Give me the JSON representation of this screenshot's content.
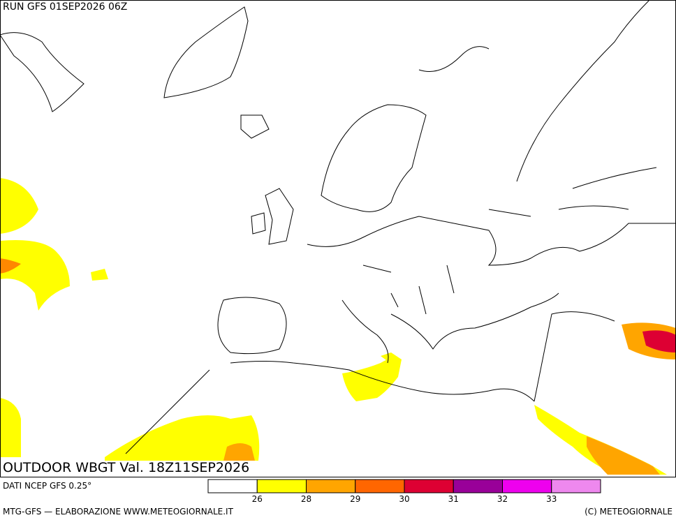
{
  "header": {
    "run": "RUN GFS 01SEP2026 06Z"
  },
  "title": "OUTDOOR WBGT Val. 18Z11SEP2026",
  "source": "DATI NCEP GFS 0.25°",
  "legend": {
    "colors": [
      "#ffffff",
      "#ffff00",
      "#ffa500",
      "#ff6600",
      "#dd0033",
      "#990099",
      "#ee00ee",
      "#ee88ee"
    ],
    "labels": [
      26,
      28,
      29,
      30,
      31,
      32,
      33
    ]
  },
  "footer": {
    "left": "MTG-GFS — ELABORAZIONE WWW.METEOGIORNALE.IT",
    "right": "(C) METEOGIORNALE"
  }
}
